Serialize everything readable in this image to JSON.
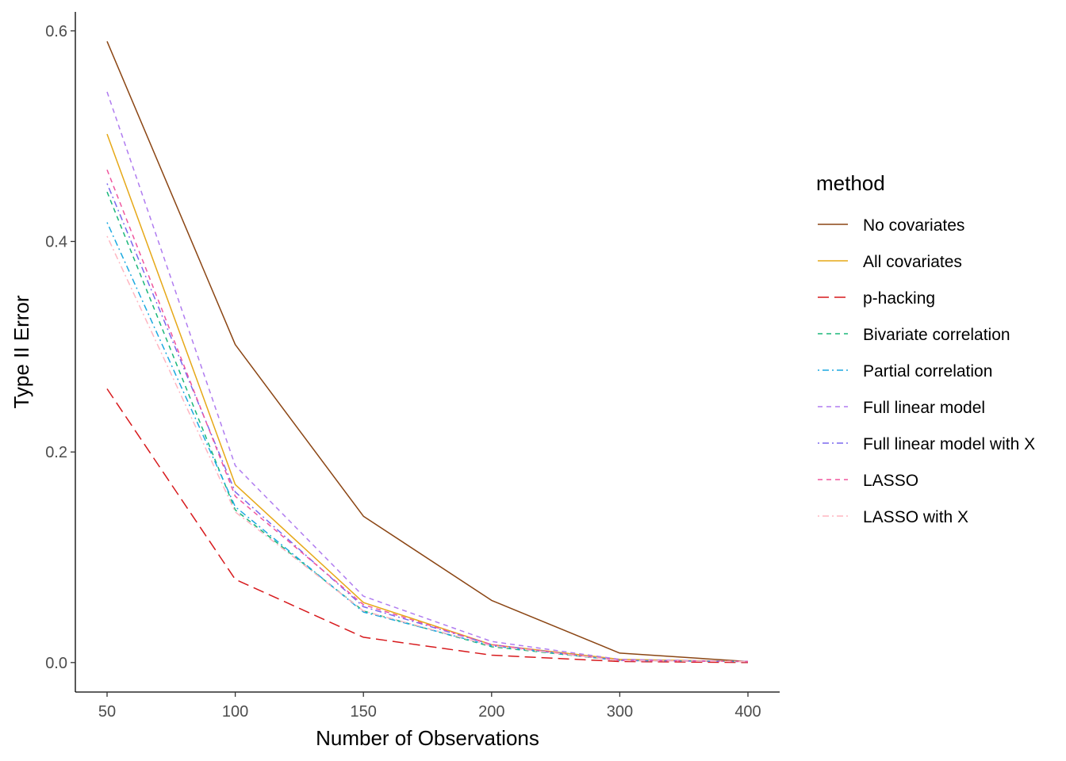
{
  "chart_data": {
    "type": "line",
    "xlabel": "Number of Observations",
    "ylabel": "Type II Error",
    "x": [
      50,
      100,
      150,
      200,
      300,
      400
    ],
    "x_tick_labels": [
      "50",
      "100",
      "150",
      "200",
      "300",
      "400"
    ],
    "y_ticks": [
      0.0,
      0.2,
      0.4,
      0.6
    ],
    "y_tick_labels": [
      "0.0",
      "0.2",
      "0.4",
      "0.6"
    ],
    "ylim": [
      -0.028,
      0.618
    ],
    "x_scale": "ordinal",
    "grid": false,
    "legend": {
      "title": "method",
      "position": "right"
    },
    "series": [
      {
        "name": "No covariates",
        "color": "#8B4513",
        "dash": "solid",
        "values": [
          0.59,
          0.302,
          0.139,
          0.059,
          0.009,
          0.001
        ]
      },
      {
        "name": "All covariates",
        "color": "#E6A817",
        "dash": "solid",
        "values": [
          0.502,
          0.169,
          0.057,
          0.017,
          0.003,
          0.001
        ]
      },
      {
        "name": "p-hacking",
        "color": "#D7191C",
        "dash": "longdash",
        "values": [
          0.26,
          0.079,
          0.024,
          0.007,
          0.001,
          0.0
        ]
      },
      {
        "name": "Bivariate correlation",
        "color": "#1BB77A",
        "dash": "dashed",
        "values": [
          0.447,
          0.145,
          0.049,
          0.015,
          0.002,
          0.001
        ]
      },
      {
        "name": "Partial correlation",
        "color": "#1CA9E0",
        "dash": "dotdash",
        "values": [
          0.418,
          0.148,
          0.048,
          0.016,
          0.002,
          0.001
        ]
      },
      {
        "name": "Full linear model",
        "color": "#B07CF0",
        "dash": "dashed",
        "values": [
          0.542,
          0.187,
          0.063,
          0.02,
          0.003,
          0.001
        ]
      },
      {
        "name": "Full linear model with X",
        "color": "#7B68EE",
        "dash": "dotdash",
        "values": [
          0.455,
          0.162,
          0.053,
          0.017,
          0.002,
          0.001
        ]
      },
      {
        "name": "LASSO",
        "color": "#F0569E",
        "dash": "dashed",
        "values": [
          0.468,
          0.158,
          0.055,
          0.017,
          0.002,
          0.001
        ]
      },
      {
        "name": "LASSO with X",
        "color": "#FFB6C1",
        "dash": "dotdash",
        "values": [
          0.405,
          0.143,
          0.049,
          0.016,
          0.002,
          0.001
        ]
      }
    ]
  }
}
